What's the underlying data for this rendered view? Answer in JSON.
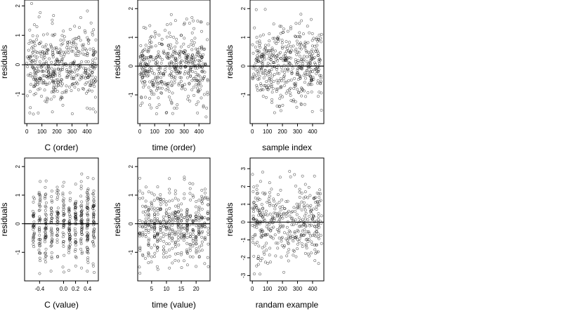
{
  "colors": {
    "point_stroke": "#000000",
    "zero_line": "#000000",
    "frame": "#000000"
  },
  "chart_data": [
    {
      "type": "scatter",
      "xlabel": "C (order)",
      "ylabel": "residuals",
      "xlim": [
        -15,
        475
      ],
      "ylim": [
        -2.0,
        2.2
      ],
      "xticks": [
        0,
        100,
        200,
        300,
        400
      ],
      "yticks": [
        -1,
        0,
        1,
        2
      ],
      "zero_line": 0,
      "grid": false,
      "legend": "none",
      "seed": 11,
      "n_points": 460,
      "x": [
        0,
        460
      ],
      "y": [
        -1.8,
        2.1
      ],
      "x_distribution": "uniform",
      "y_distribution": "normal",
      "y_sd": 0.65
    },
    {
      "type": "scatter",
      "xlabel": "time (order)",
      "ylabel": "residuals",
      "xlim": [
        -15,
        475
      ],
      "ylim": [
        -2.0,
        2.3
      ],
      "xticks": [
        0,
        100,
        200,
        300,
        400
      ],
      "yticks": [
        -1,
        0,
        1,
        2
      ],
      "zero_line": 0,
      "grid": false,
      "legend": "none",
      "seed": 23,
      "n_points": 460,
      "x": [
        0,
        460
      ],
      "y": [
        -1.8,
        2.2
      ],
      "x_distribution": "uniform",
      "y_distribution": "normal",
      "y_sd": 0.65
    },
    {
      "type": "scatter",
      "xlabel": "sample index",
      "ylabel": "residuals",
      "xlim": [
        -15,
        475
      ],
      "ylim": [
        -2.0,
        2.3
      ],
      "xticks": [
        0,
        100,
        200,
        300,
        400
      ],
      "yticks": [
        -1,
        0,
        1,
        2
      ],
      "zero_line": 0,
      "grid": false,
      "legend": "none",
      "seed": 37,
      "n_points": 460,
      "x": [
        0,
        460
      ],
      "y": [
        -1.8,
        2.1
      ],
      "x_distribution": "uniform",
      "y_distribution": "normal",
      "y_sd": 0.65
    },
    {
      "type": "scatter",
      "xlabel": "C (value)",
      "ylabel": "residuals",
      "xlim": [
        -0.65,
        0.58
      ],
      "ylim": [
        -2.0,
        2.3
      ],
      "xticks": [
        -0.4,
        0.0,
        0.2,
        0.4
      ],
      "xtick_labels": [
        "-0.4",
        "0.0",
        "0.2",
        "0.4"
      ],
      "yticks": [
        -1,
        0,
        1,
        2
      ],
      "zero_line": 0,
      "grid": false,
      "legend": "none",
      "seed": 41,
      "n_points": 460,
      "x": [
        -0.55,
        0.5
      ],
      "y": [
        -1.8,
        2.1
      ],
      "x_distribution": "clustered",
      "x_clusters": [
        -0.5,
        -0.4,
        -0.3,
        -0.2,
        -0.1,
        0.0,
        0.1,
        0.2,
        0.3,
        0.4,
        0.5
      ],
      "y_distribution": "normal",
      "y_sd": 0.65
    },
    {
      "type": "scatter",
      "xlabel": "time (value)",
      "ylabel": "residuals",
      "xlim": [
        0.3,
        24.7
      ],
      "ylim": [
        -2.0,
        2.3
      ],
      "xticks": [
        5,
        10,
        15,
        20
      ],
      "yticks": [
        -1,
        0,
        1,
        2
      ],
      "zero_line": 0,
      "grid": false,
      "legend": "none",
      "seed": 53,
      "n_points": 460,
      "x": [
        1,
        24
      ],
      "y": [
        -1.8,
        2.2
      ],
      "x_distribution": "clustered",
      "x_clusters": [
        1,
        2,
        3,
        4,
        5,
        6,
        7,
        8,
        9,
        10,
        11,
        12,
        13,
        14,
        15,
        16,
        17,
        18,
        19,
        20,
        21,
        22,
        23,
        24
      ],
      "y_distribution": "normal",
      "y_sd": 0.65
    },
    {
      "type": "scatter",
      "xlabel": "randam example",
      "ylabel": "residuals",
      "xlim": [
        -15,
        475
      ],
      "ylim": [
        -3.3,
        3.6
      ],
      "xticks": [
        0,
        100,
        200,
        300,
        400
      ],
      "yticks": [
        -3,
        -2,
        -1,
        0,
        1,
        2,
        3
      ],
      "zero_line": 0,
      "grid": false,
      "legend": "none",
      "seed": 67,
      "n_points": 400,
      "x": [
        0,
        460
      ],
      "y": [
        -3.0,
        3.3
      ],
      "x_distribution": "uniform",
      "y_distribution": "normal",
      "y_sd": 1.0
    }
  ]
}
